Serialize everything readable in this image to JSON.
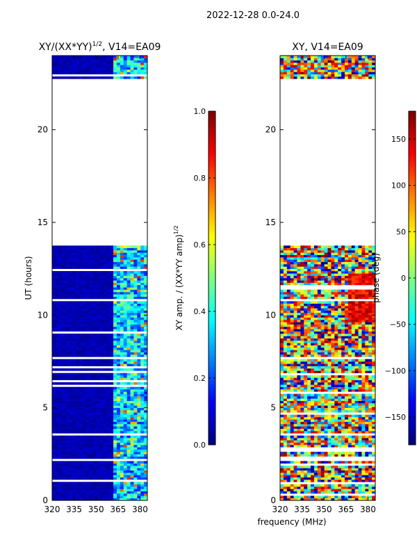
{
  "figure": {
    "suptitle": "2022-12-28 0.0-24.0",
    "shared_xlabel": "frequency (MHz)"
  },
  "chart_data": [
    {
      "type": "heatmap",
      "title_main": "XY/(XX*YY)",
      "title_sup": "1/2",
      "title_tail": ", V14=EA09",
      "xlabel": "",
      "ylabel": "UT (hours)",
      "xlim": [
        320,
        385
      ],
      "ylim": [
        0,
        24
      ],
      "xticks": [
        320,
        335,
        350,
        365,
        380
      ],
      "yticks": [
        0,
        5,
        10,
        15,
        20
      ],
      "data_ranges_hours": [
        [
          0,
          13.75
        ],
        [
          22.75,
          24
        ]
      ],
      "colorbar": {
        "label_main": "XY amp. / (XX*YY amp)",
        "label_sup": "1/2",
        "range": [
          0.0,
          1.0
        ],
        "ticks": [
          "0.0",
          "0.2",
          "0.4",
          "0.6",
          "0.8",
          "1.0"
        ],
        "tick_values": [
          0.0,
          0.2,
          0.4,
          0.6,
          0.8,
          1.0
        ],
        "colormap": "jet"
      }
    },
    {
      "type": "heatmap",
      "title_main": "XY, V14=EA09",
      "title_sup": "",
      "title_tail": "",
      "xlabel": "frequency (MHz)",
      "ylabel": "",
      "xlim": [
        320,
        385
      ],
      "ylim": [
        0,
        24
      ],
      "xticks": [
        320,
        335,
        350,
        365,
        380
      ],
      "yticks": [
        0,
        5,
        10,
        15,
        20
      ],
      "data_ranges_hours": [
        [
          0,
          13.75
        ],
        [
          22.75,
          24
        ]
      ],
      "colorbar": {
        "label_main": "phase (deg)",
        "label_sup": "",
        "range": [
          -180,
          180
        ],
        "ticks": [
          "−150",
          "−100",
          "−50",
          "0",
          "50",
          "100",
          "150"
        ],
        "tick_values": [
          -150,
          -100,
          -50,
          0,
          50,
          100,
          150
        ],
        "colormap": "jet"
      }
    }
  ],
  "colors": {
    "jet": [
      "#00007f",
      "#0000ff",
      "#007fff",
      "#00ffff",
      "#7fff7f",
      "#ffff00",
      "#ff7f00",
      "#ff0000",
      "#7f0000"
    ],
    "axis": "#000000",
    "background": "#ffffff"
  }
}
